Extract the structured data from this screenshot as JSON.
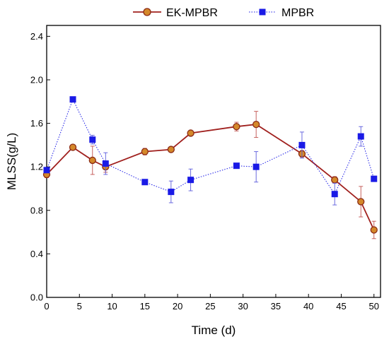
{
  "chart_data": {
    "type": "line",
    "title": "",
    "xlabel": "Time (d)",
    "ylabel": "MLSS(g/L)",
    "xlim": [
      0,
      51
    ],
    "ylim": [
      0,
      2.5
    ],
    "xticks": [
      0,
      5,
      10,
      15,
      20,
      25,
      30,
      35,
      40,
      45,
      50
    ],
    "yticks": [
      0.0,
      0.4,
      0.8,
      1.2,
      1.6,
      2.0,
      2.4
    ],
    "xtick_labels": [
      "0",
      "5",
      "10",
      "15",
      "20",
      "25",
      "30",
      "35",
      "40",
      "45",
      "50"
    ],
    "ytick_labels": [
      "0.0",
      "0.4",
      "0.8",
      "1.2",
      "1.6",
      "2.0",
      "2.4"
    ],
    "grid": false,
    "legend_position": "top-center",
    "series": [
      {
        "name": "EK-MPBR",
        "color": "#a0201e",
        "marker": "circle",
        "line_style": "solid",
        "x": [
          0,
          4,
          7,
          9,
          15,
          19,
          22,
          29,
          32,
          39,
          44,
          48,
          50
        ],
        "y": [
          1.13,
          1.38,
          1.26,
          1.2,
          1.34,
          1.36,
          1.51,
          1.57,
          1.59,
          1.32,
          1.08,
          0.88,
          0.62
        ],
        "error": [
          0.03,
          0.02,
          0.13,
          0.05,
          0.03,
          0.02,
          0.02,
          0.04,
          0.12,
          0.03,
          0.03,
          0.14,
          0.08
        ]
      },
      {
        "name": "MPBR",
        "color": "#1a1ae6",
        "marker": "square",
        "line_style": "dotted",
        "x": [
          0,
          4,
          7,
          9,
          15,
          19,
          22,
          29,
          32,
          39,
          44,
          48,
          50
        ],
        "y": [
          1.17,
          1.82,
          1.45,
          1.23,
          1.06,
          0.97,
          1.08,
          1.21,
          1.2,
          1.4,
          0.95,
          1.48,
          1.09
        ],
        "error": [
          0.02,
          0.02,
          0.04,
          0.1,
          0.02,
          0.1,
          0.1,
          0.02,
          0.14,
          0.12,
          0.1,
          0.09,
          0.02
        ]
      }
    ]
  }
}
